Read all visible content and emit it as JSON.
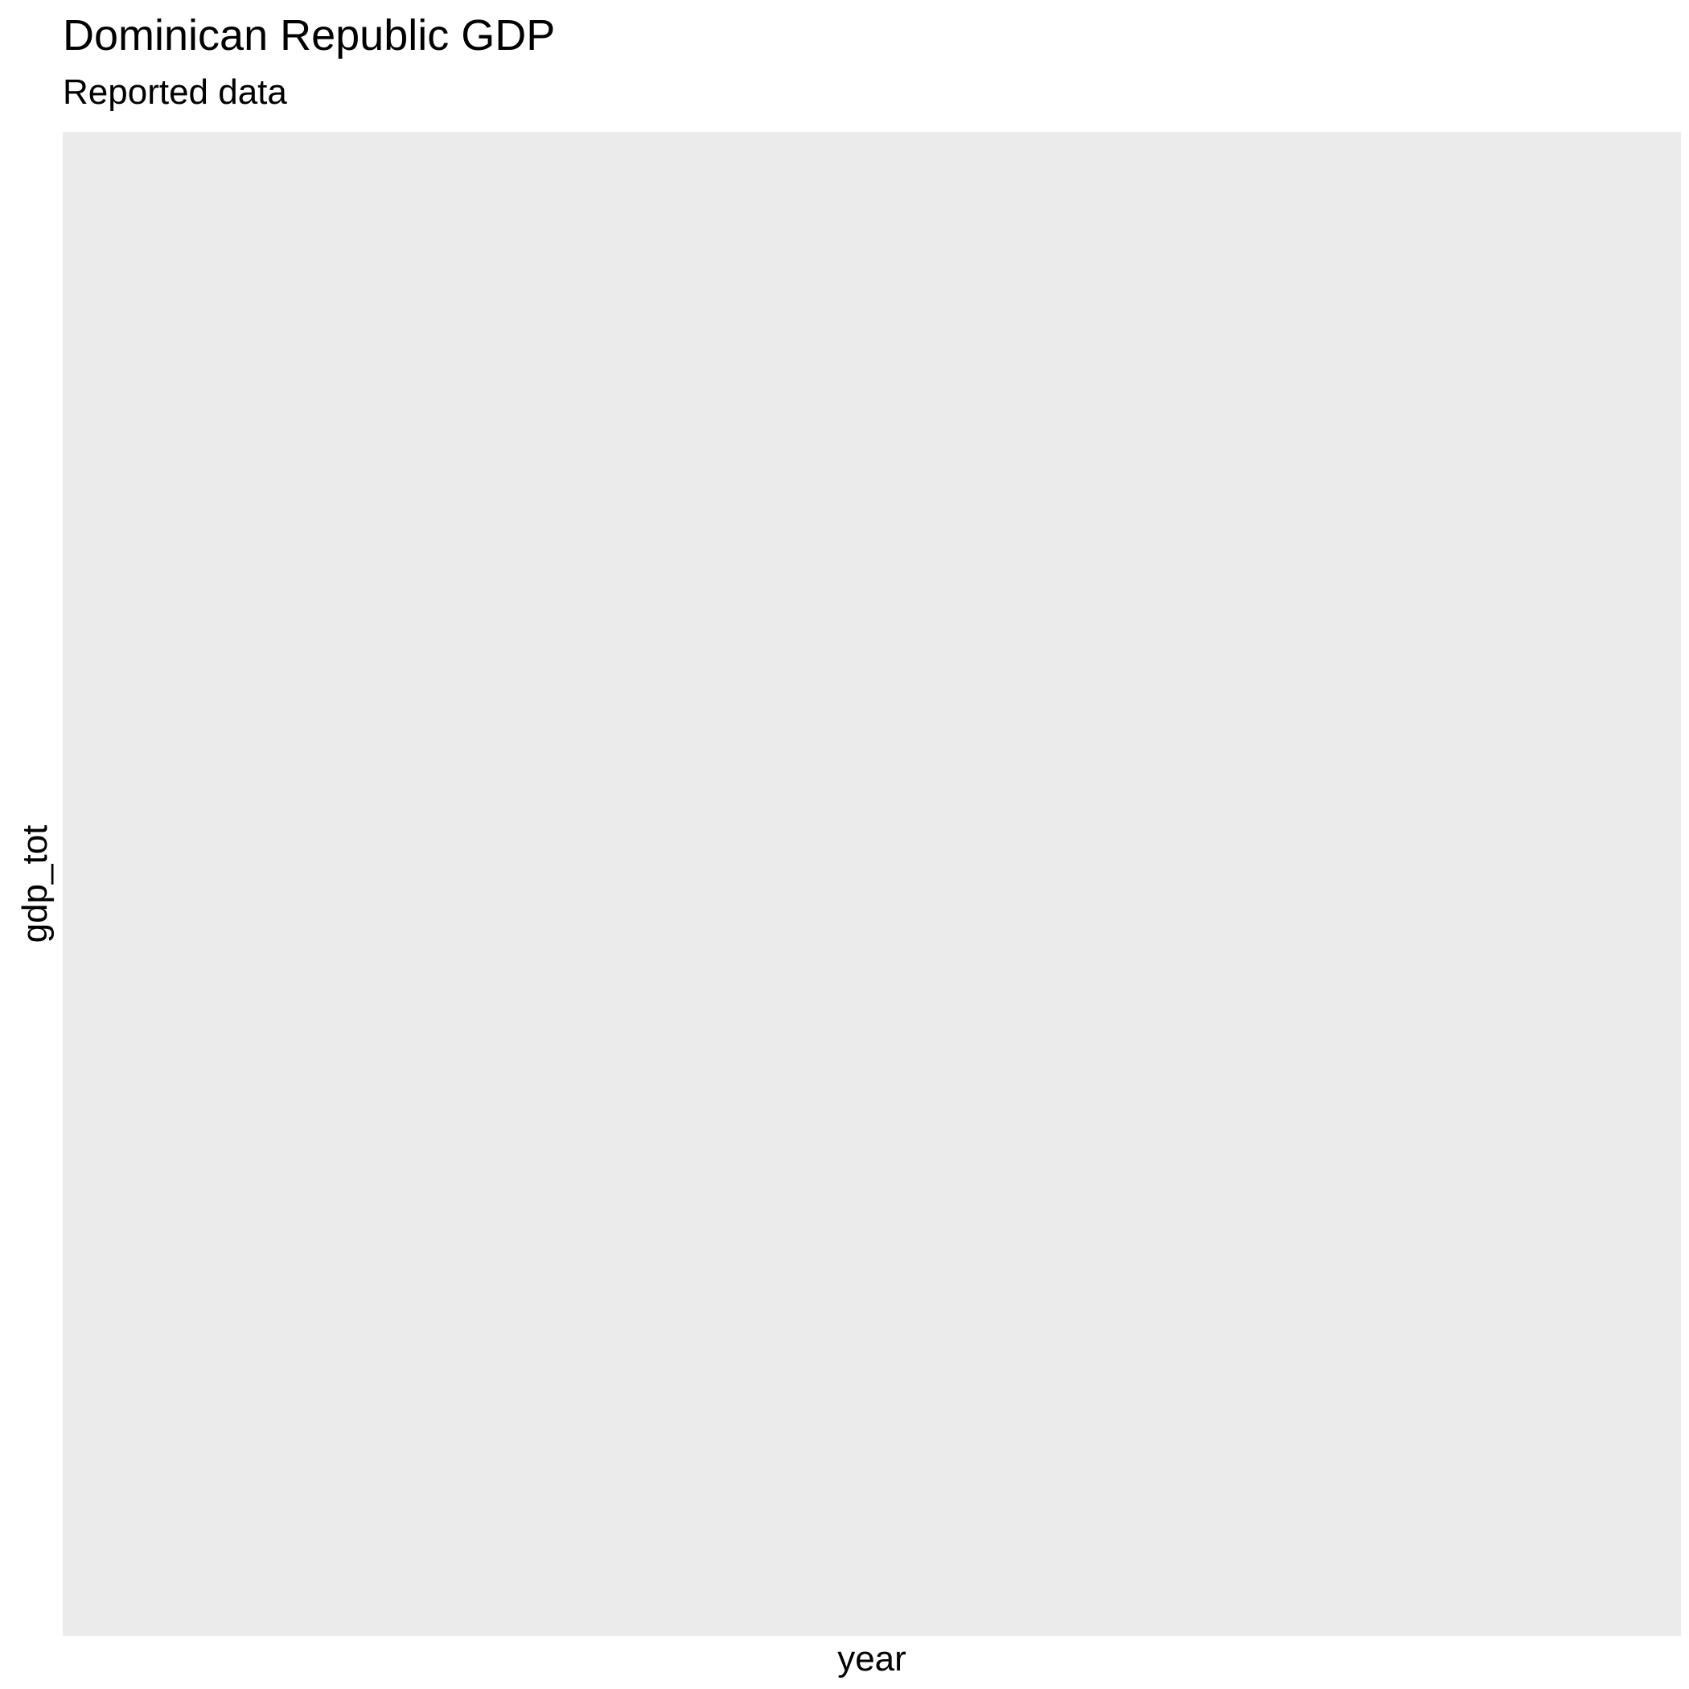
{
  "chart_data": {
    "type": "line",
    "title": "Dominican Republic GDP",
    "subtitle": "Reported data",
    "xlabel": "year",
    "ylabel": "gdp_tot",
    "series": [],
    "grid": false,
    "panel_background": "#EBEBEB"
  }
}
